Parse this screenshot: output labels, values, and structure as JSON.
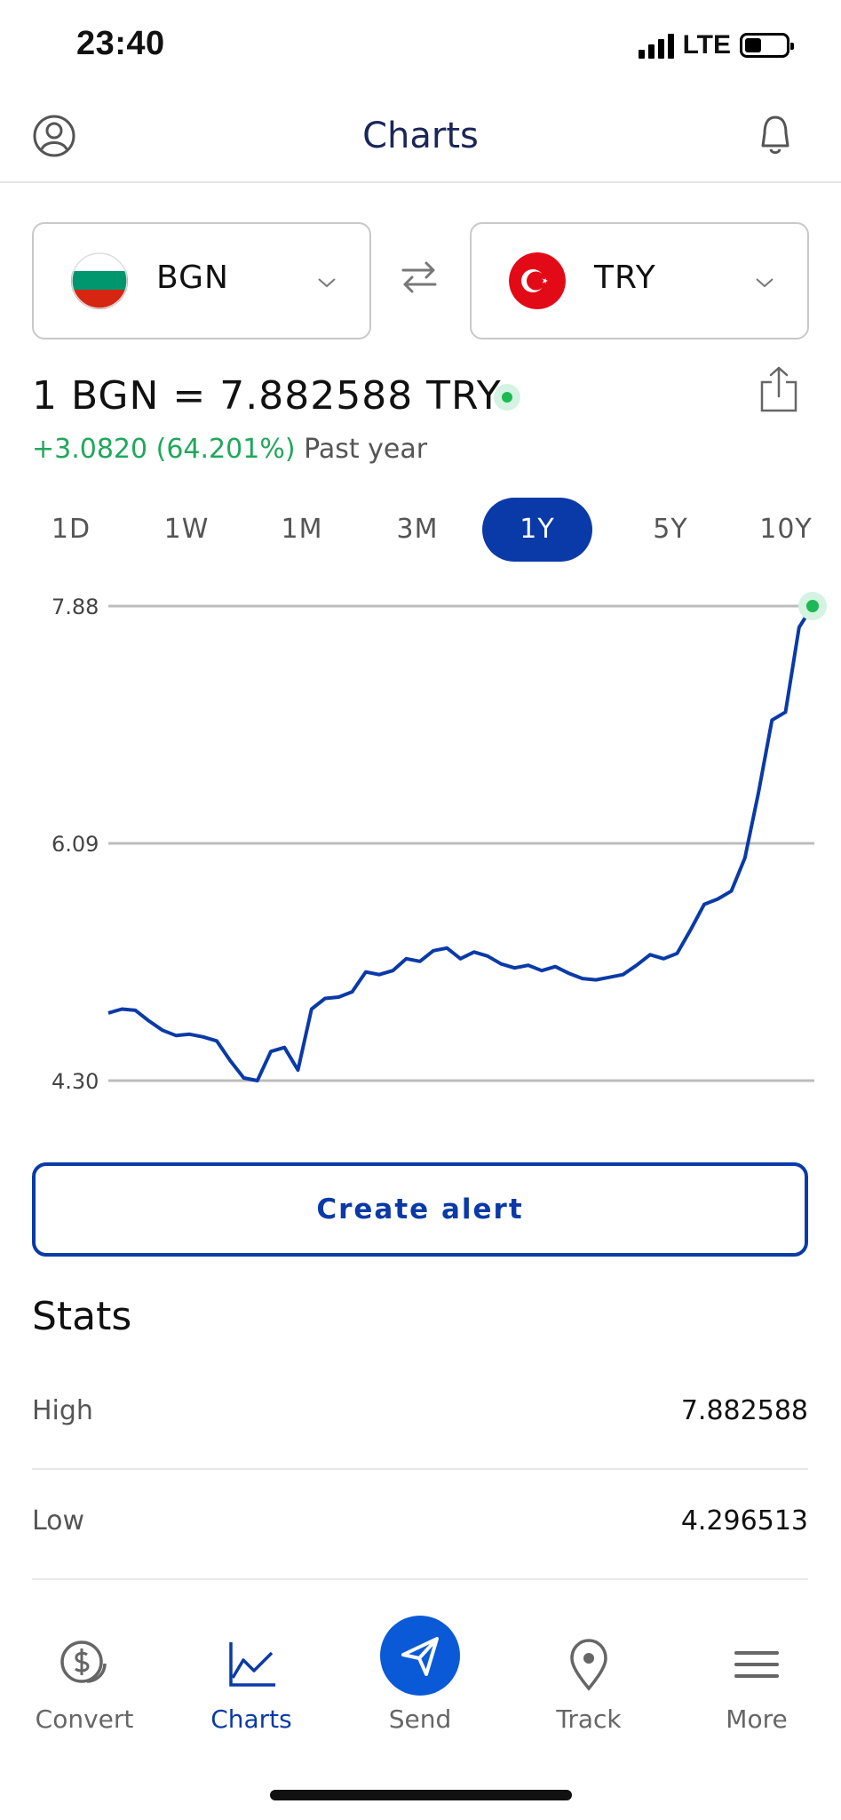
{
  "status_bar": {
    "time": "23:40",
    "network": "LTE"
  },
  "header": {
    "title": "Charts"
  },
  "converter": {
    "from": {
      "code": "BGN",
      "flag_icon": "bulgaria-flag-icon"
    },
    "to": {
      "code": "TRY",
      "flag_icon": "turkey-flag-icon"
    }
  },
  "rate": {
    "text": "1 BGN = 7.882588 TRY",
    "change": "+3.0820 (64.201%)",
    "period": "Past year"
  },
  "ranges": [
    "1D",
    "1W",
    "1M",
    "3M",
    "1Y",
    "5Y",
    "10Y"
  ],
  "selected_range": "1Y",
  "chart_data": {
    "type": "line",
    "series_label": "BGN/TRY",
    "y_ticks": [
      "7.88",
      "6.09",
      "4.30"
    ],
    "ylim": [
      4.3,
      7.88
    ],
    "x": [
      0,
      1,
      2,
      3,
      4,
      5,
      6,
      7,
      8,
      9,
      10,
      11,
      12,
      13,
      14,
      15,
      16,
      17,
      18,
      19,
      20,
      21,
      22,
      23,
      24,
      25,
      26,
      27,
      28,
      29,
      30,
      31,
      32,
      33,
      34,
      35,
      36,
      37,
      38,
      39,
      40,
      41,
      42,
      43,
      44,
      45,
      46,
      47,
      48,
      49,
      50,
      51,
      52
    ],
    "values": [
      4.81,
      4.84,
      4.83,
      4.75,
      4.68,
      4.64,
      4.65,
      4.63,
      4.6,
      4.45,
      4.32,
      4.3,
      4.52,
      4.55,
      4.38,
      4.84,
      4.92,
      4.93,
      4.97,
      5.12,
      5.1,
      5.13,
      5.22,
      5.2,
      5.28,
      5.3,
      5.22,
      5.27,
      5.24,
      5.18,
      5.15,
      5.17,
      5.13,
      5.16,
      5.11,
      5.07,
      5.06,
      5.08,
      5.1,
      5.17,
      5.25,
      5.22,
      5.26,
      5.44,
      5.63,
      5.67,
      5.73,
      5.98,
      6.47,
      7.02,
      7.08,
      7.72,
      7.88
    ],
    "grid": true
  },
  "actions": {
    "create_alert": "Create alert"
  },
  "stats": {
    "title": "Stats",
    "rows": [
      {
        "label": "High",
        "value": "7.882588"
      },
      {
        "label": "Low",
        "value": "4.296513"
      }
    ]
  },
  "nav": {
    "items": [
      {
        "label": "Convert",
        "icon": "dollar-coin-icon"
      },
      {
        "label": "Charts",
        "icon": "line-chart-icon"
      },
      {
        "label": "Send",
        "icon": "paper-plane-icon"
      },
      {
        "label": "Track",
        "icon": "location-pin-icon"
      },
      {
        "label": "More",
        "icon": "hamburger-menu-icon"
      }
    ],
    "active": "Charts"
  },
  "colors": {
    "accent": "#0a3aa8",
    "positive": "#1fa85a",
    "title": "#1a2659",
    "send_button": "#0a5ad8"
  }
}
